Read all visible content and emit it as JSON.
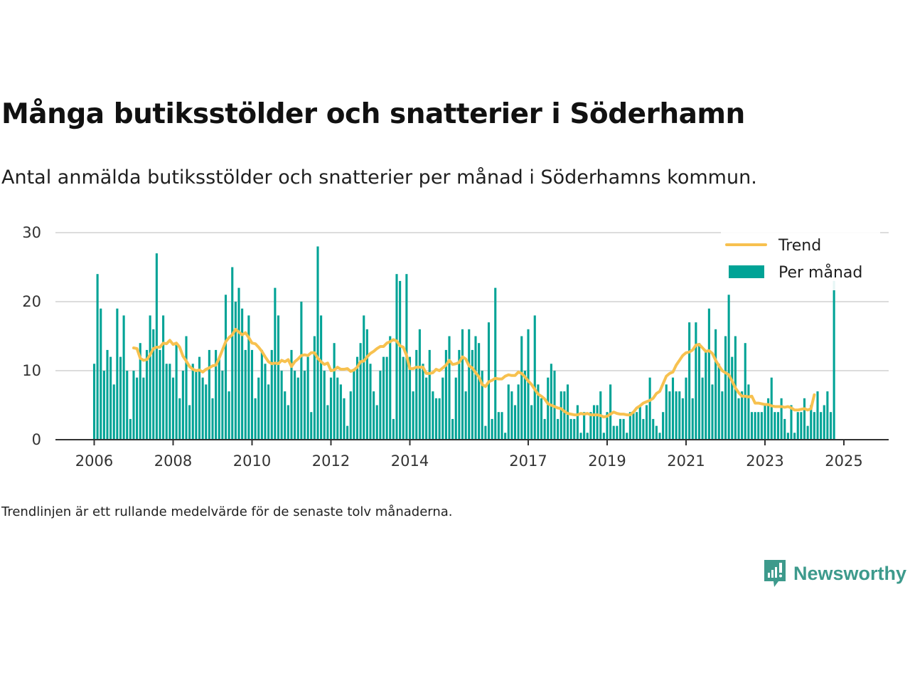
{
  "header": {
    "title": "Många butiksstölder och snatterier i Söderhamn",
    "subtitle": "Antal anmälda butiksstölder och snatterier per månad i Söderhamns kommun."
  },
  "footer": {
    "note": "Trendlinjen är ett rullande medelvärde för de senaste tolv månaderna."
  },
  "brand": {
    "name": "Newsworthy",
    "icon": "newsworthy-logo-icon",
    "color": "#3d9a8c"
  },
  "colors": {
    "bar": "#00a396",
    "trend": "#f7c14f",
    "grid": "#dcdcdc",
    "axis": "#333333"
  },
  "chart_data": {
    "type": "bar",
    "x_start": "2006-01",
    "frequency": "monthly",
    "ylim": [
      0,
      30
    ],
    "yticks": [
      0,
      10,
      20,
      30
    ],
    "xtick_labels": [
      "2006",
      "2008",
      "2010",
      "2012",
      "2014",
      "2017",
      "2019",
      "2021",
      "2023",
      "2025"
    ],
    "grid": true,
    "legend_position": "top-right",
    "series": [
      {
        "name": "Per månad",
        "type": "bar",
        "values": [
          11,
          24,
          19,
          10,
          13,
          12,
          8,
          19,
          12,
          18,
          10,
          3,
          10,
          9,
          14,
          9,
          13,
          18,
          16,
          27,
          13,
          18,
          11,
          11,
          9,
          14,
          6,
          10,
          15,
          5,
          11,
          10,
          12,
          9,
          8,
          13,
          6,
          13,
          12,
          10,
          21,
          7,
          25,
          20,
          22,
          19,
          13,
          18,
          13,
          6,
          9,
          13,
          11,
          8,
          13,
          22,
          18,
          10,
          7,
          5,
          13,
          10,
          9,
          20,
          10,
          12,
          4,
          15,
          28,
          18,
          10,
          5,
          9,
          14,
          9,
          8,
          6,
          2,
          7,
          10,
          12,
          14,
          18,
          16,
          11,
          7,
          5,
          10,
          12,
          12,
          15,
          3,
          24,
          23,
          12,
          24,
          12,
          7,
          13,
          16,
          11,
          9,
          13,
          7,
          6,
          6,
          9,
          13,
          15,
          3,
          9,
          13,
          16,
          7,
          16,
          13,
          15,
          14,
          10,
          2,
          17,
          3,
          22,
          4,
          4,
          1,
          8,
          7,
          5,
          8,
          15,
          10,
          16,
          5,
          18,
          8,
          6,
          3,
          9,
          11,
          10,
          3,
          7,
          7,
          8,
          3,
          3,
          5,
          1,
          4,
          1,
          4,
          5,
          5,
          7,
          1,
          4,
          8,
          2,
          2,
          3,
          3,
          1,
          4,
          4,
          4,
          5,
          3,
          5,
          9,
          3,
          2,
          1,
          4,
          8,
          7,
          9,
          7,
          7,
          6,
          9,
          17,
          6,
          17,
          14,
          9,
          13,
          19,
          8,
          16,
          11,
          7,
          15,
          21,
          12,
          15,
          6,
          7,
          14,
          8,
          4,
          4,
          4,
          4,
          5,
          6,
          9,
          4,
          4,
          6,
          3,
          1,
          5,
          1,
          4,
          4,
          6,
          2,
          5,
          4,
          7,
          4,
          5,
          7,
          4,
          23
        ]
      },
      {
        "name": "Trend",
        "type": "line",
        "start_index": 12,
        "values": [
          13.3,
          13.2,
          11.8,
          11.5,
          11.6,
          12.3,
          13.2,
          13.4,
          13.4,
          14.0,
          13.9,
          14.4,
          13.8,
          14.0,
          13.4,
          12.1,
          11.4,
          10.6,
          10.2,
          10.0,
          10.1,
          9.8,
          10.2,
          10.4,
          10.7,
          10.8,
          11.8,
          13.0,
          14.2,
          14.8,
          15.2,
          16.0,
          15.6,
          15.2,
          15.5,
          14.8,
          14.0,
          13.9,
          13.4,
          12.8,
          12.0,
          11.3,
          11.0,
          11.1,
          11.0,
          11.5,
          11.3,
          11.6,
          10.6,
          11.3,
          11.7,
          12.2,
          12.3,
          12.2,
          12.6,
          12.6,
          11.8,
          11.3,
          10.9,
          11.1,
          10.0,
          10.1,
          10.5,
          10.2,
          10.2,
          10.3,
          9.9,
          10.1,
          10.5,
          11.3,
          11.4,
          12.0,
          12.5,
          12.8,
          13.2,
          13.5,
          13.5,
          14.0,
          14.2,
          14.5,
          14.3,
          13.6,
          13.4,
          12.2,
          10.3,
          10.3,
          10.5,
          10.5,
          10.5,
          9.6,
          9.6,
          9.7,
          10.2,
          10.0,
          10.4,
          10.8,
          11.5,
          10.9,
          11.0,
          11.2,
          12.0,
          11.7,
          10.7,
          10.4,
          9.7,
          9.1,
          8.0,
          7.7,
          8.4,
          8.6,
          8.9,
          8.8,
          8.8,
          9.2,
          9.4,
          9.3,
          9.3,
          9.8,
          9.6,
          9.1,
          8.5,
          8.0,
          7.3,
          6.6,
          6.3,
          5.9,
          5.2,
          5.0,
          4.8,
          4.6,
          4.5,
          4.1,
          3.8,
          3.7,
          3.6,
          3.6,
          3.8,
          3.7,
          3.8,
          3.6,
          3.6,
          3.6,
          3.5,
          3.3,
          3.4,
          3.7,
          4.0,
          3.8,
          3.7,
          3.7,
          3.6,
          3.6,
          4.0,
          4.6,
          4.9,
          5.3,
          5.5,
          5.7,
          6.0,
          6.7,
          7.0,
          8.1,
          9.2,
          9.6,
          9.8,
          10.8,
          11.5,
          12.2,
          12.6,
          12.7,
          13.0,
          13.7,
          13.8,
          13.3,
          12.8,
          12.9,
          12.5,
          11.5,
          10.7,
          10.0,
          9.7,
          9.4,
          8.5,
          7.5,
          6.8,
          6.3,
          6.3,
          6.2,
          6.3,
          5.3,
          5.3,
          5.2,
          5.1,
          5.1,
          4.9,
          4.8,
          4.8,
          4.8,
          4.7,
          4.8,
          4.6,
          4.3,
          4.3,
          4.4,
          4.5,
          4.3,
          4.5,
          6.5
        ]
      }
    ]
  }
}
